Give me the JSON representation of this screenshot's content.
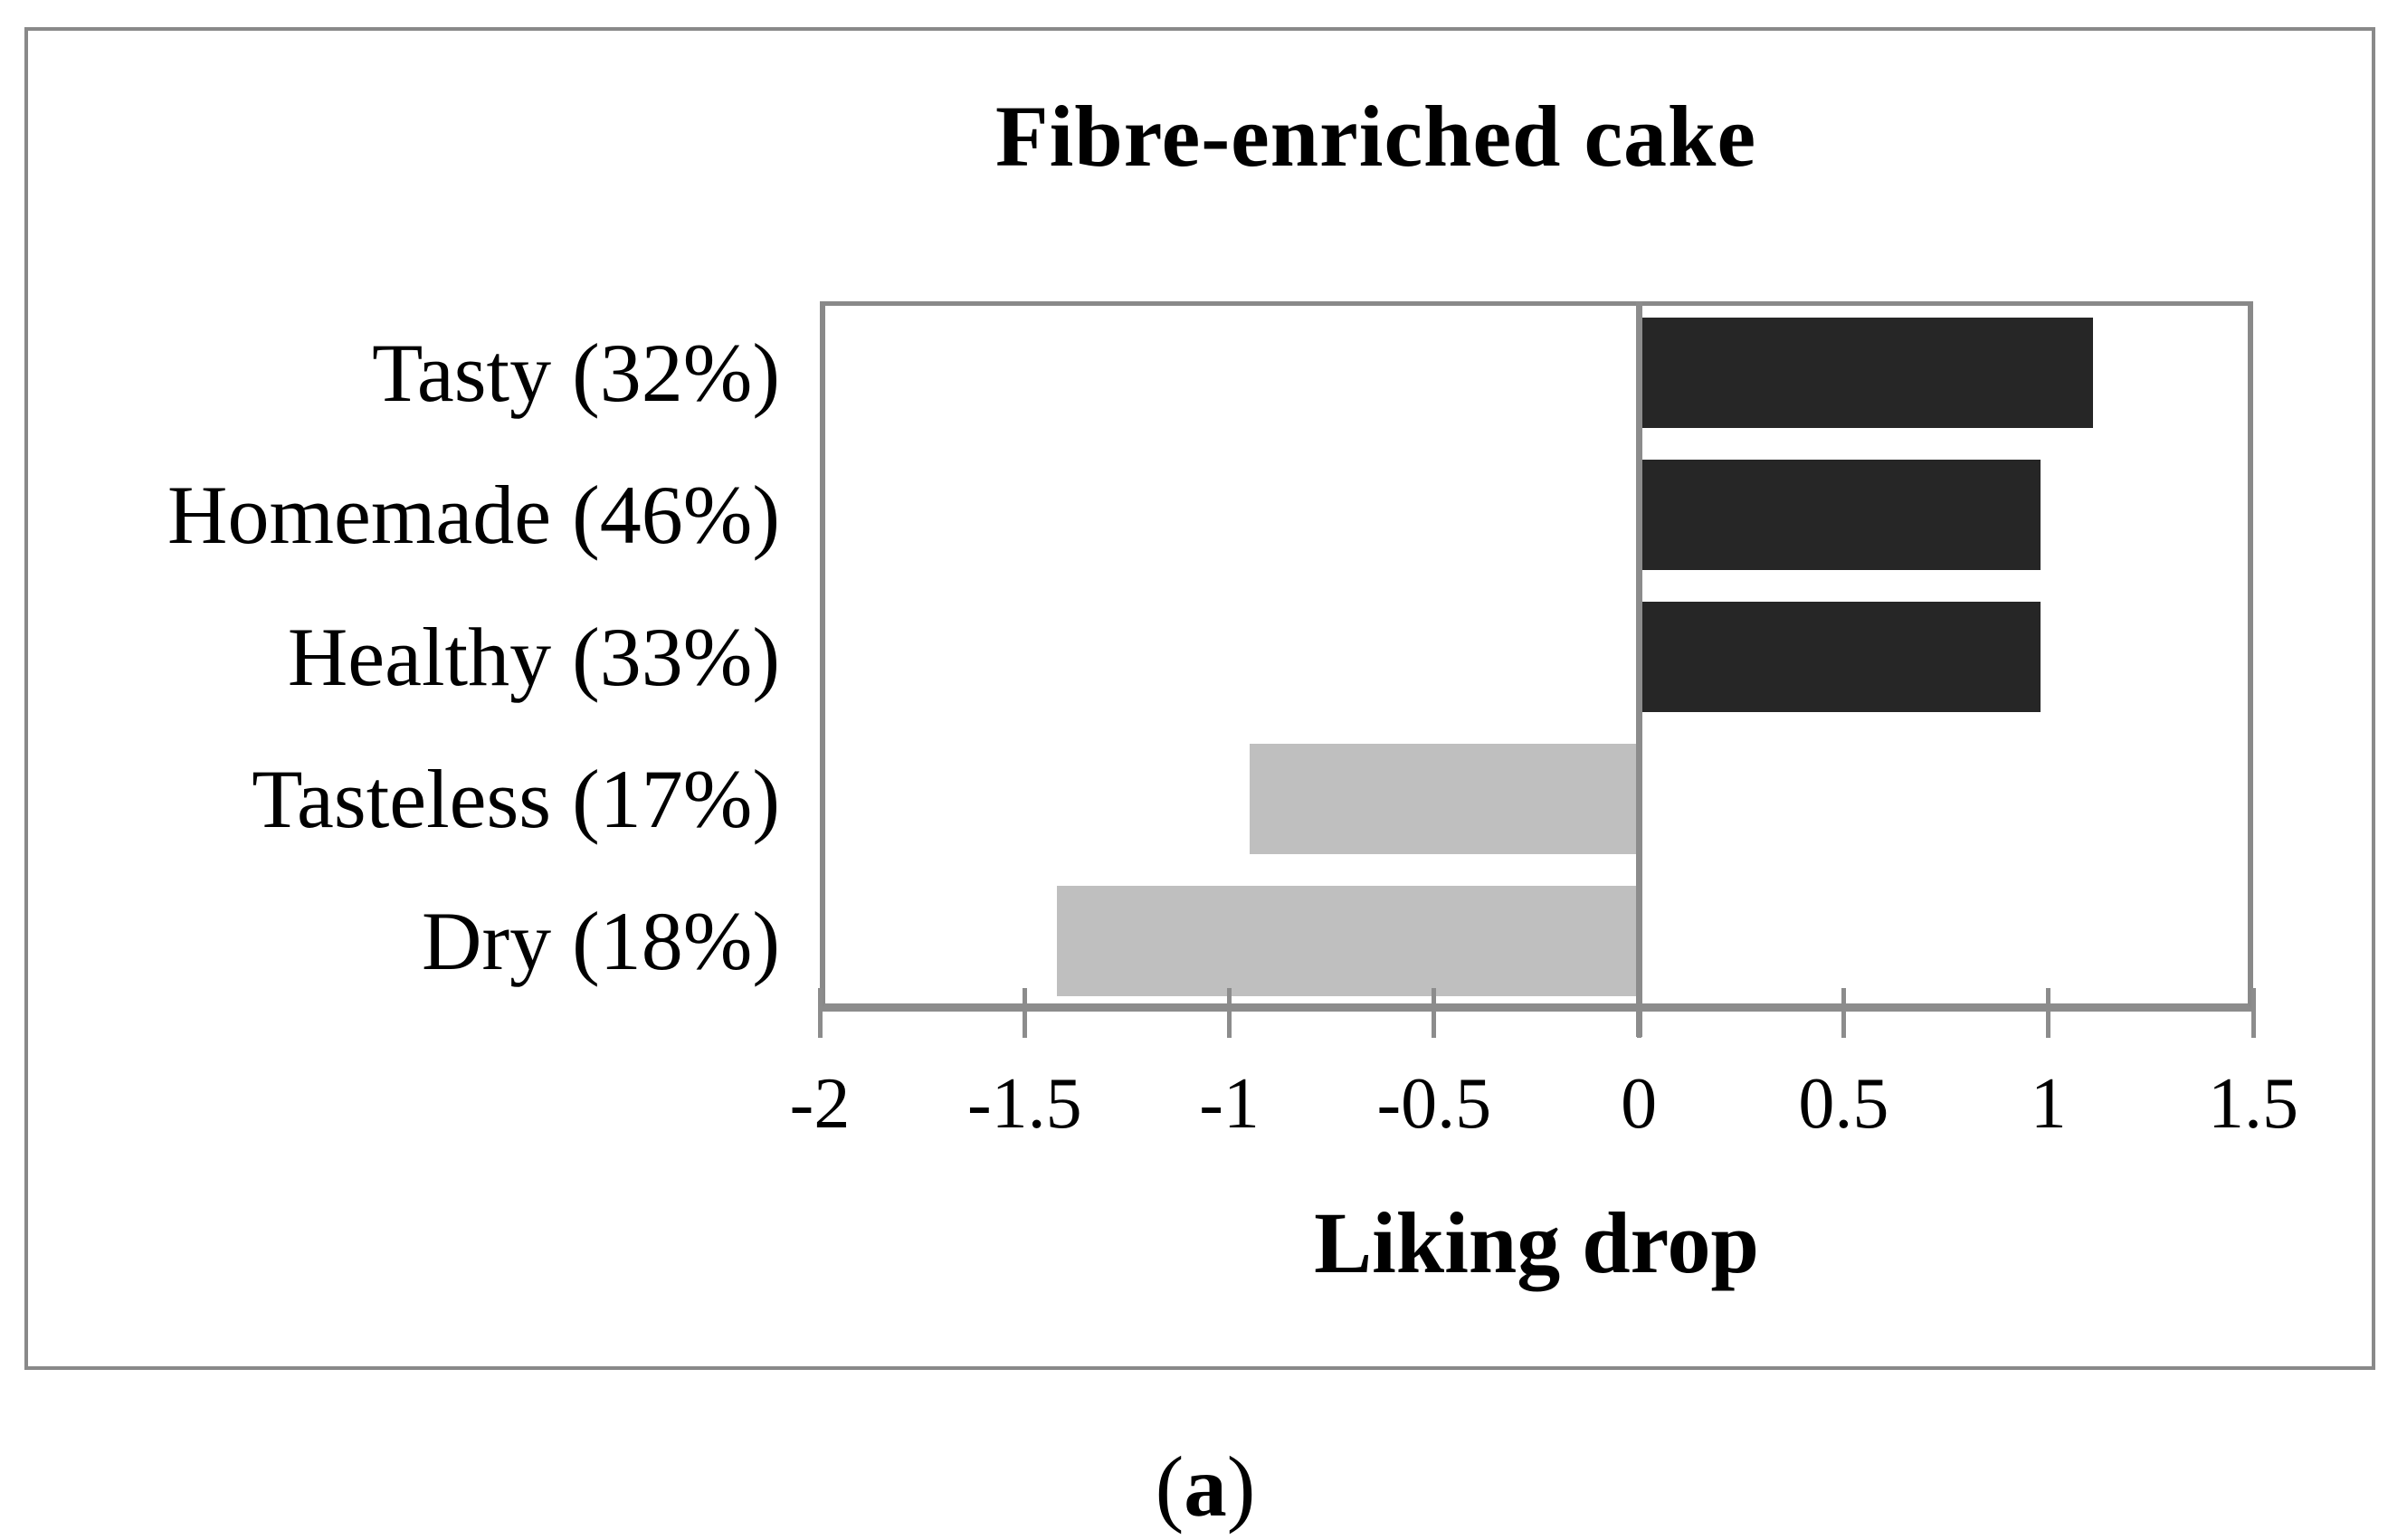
{
  "figure": {
    "caption_open": "(",
    "caption_letter": "a",
    "caption_close": ")"
  },
  "chart_data": {
    "type": "bar",
    "orientation": "horizontal",
    "title": "Fibre-enriched cake",
    "xlabel": "Liking drop",
    "categories": [
      "Tasty (32%)",
      "Homemade (46%)",
      "Healthy (33%)",
      "Tasteless (17%)",
      "Dry (18%)"
    ],
    "values": [
      1.11,
      0.98,
      0.98,
      -0.95,
      -1.42
    ],
    "xlim": [
      -2,
      1.5
    ],
    "xticks": [
      -2,
      -1.5,
      -1,
      -0.5,
      0,
      0.5,
      1,
      1.5
    ],
    "xtick_labels": [
      "-2",
      "-1.5",
      "-1",
      "-0.5",
      "0",
      "0.5",
      "1",
      "1.5"
    ],
    "positive_color": "#262626",
    "negative_color": "#BFBFBF",
    "axis_color": "#898989",
    "grid": false,
    "legend": null
  }
}
